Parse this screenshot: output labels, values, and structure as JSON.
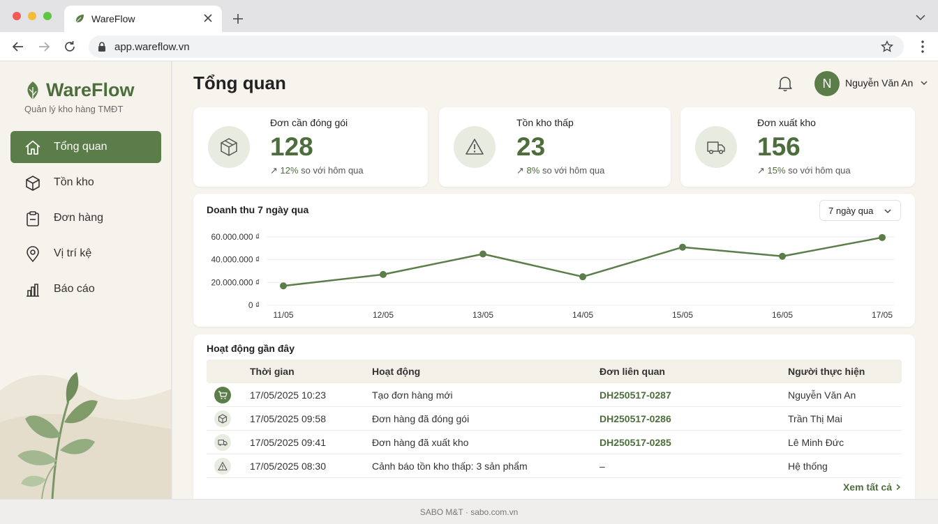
{
  "browser": {
    "tab_title": "WareFlow",
    "url": "app.wareflow.vn"
  },
  "sidebar": {
    "brand": "WareFlow",
    "tagline": "Quản lý kho hàng TMĐT",
    "items": [
      {
        "label": "Tổng quan",
        "icon": "home-icon",
        "active": true
      },
      {
        "label": "Tồn kho",
        "icon": "box-icon",
        "active": false
      },
      {
        "label": "Đơn hàng",
        "icon": "clipboard-icon",
        "active": false
      },
      {
        "label": "Vị trí kệ",
        "icon": "map-pin-icon",
        "active": false
      },
      {
        "label": "Báo cáo",
        "icon": "bar-chart-icon",
        "active": false
      }
    ]
  },
  "header": {
    "title": "Tổng quan",
    "user": {
      "initial": "N",
      "name": "Nguyễn Văn An"
    }
  },
  "stats": [
    {
      "title": "Đơn cần đóng gói",
      "value": "128",
      "delta_pct": "12%",
      "delta_text": "so với hôm qua",
      "icon": "package-icon"
    },
    {
      "title": "Tồn kho thấp",
      "value": "23",
      "delta_pct": "8%",
      "delta_text": "so với hôm qua",
      "icon": "warning-icon"
    },
    {
      "title": "Đơn xuất kho",
      "value": "156",
      "delta_pct": "15%",
      "delta_text": "so với hôm qua",
      "icon": "truck-icon"
    }
  ],
  "revenue_chart": {
    "title": "Doanh thu 7 ngày qua",
    "range_label": "7 ngày qua"
  },
  "chart_data": {
    "type": "line",
    "title": "Doanh thu 7 ngày qua",
    "categories": [
      "11/05",
      "12/05",
      "13/05",
      "14/05",
      "15/05",
      "16/05",
      "17/05"
    ],
    "series": [
      {
        "values": [
          17000000,
          27000000,
          45000000,
          25000000,
          51000000,
          43000000,
          59500000
        ]
      }
    ],
    "y_ticks": [
      0,
      20000000,
      40000000,
      60000000
    ],
    "y_tick_labels": [
      "0 ₫",
      "20.000.000 ₫",
      "40.000.000 ₫",
      "60.000.000 ₫"
    ],
    "ylim": [
      0,
      60000000
    ],
    "grid": true,
    "color": "#5b7d49"
  },
  "activity": {
    "title": "Hoạt động gần đây",
    "columns": [
      "Thời gian",
      "Hoạt động",
      "Đơn liên quan",
      "Người thực hiện"
    ],
    "rows": [
      {
        "icon": "cart-icon",
        "time": "17/05/2025 10:23",
        "action": "Tạo đơn hàng mới",
        "order": "DH250517-0287",
        "user": "Nguyễn Văn An"
      },
      {
        "icon": "package-icon",
        "time": "17/05/2025 09:58",
        "action": "Đơn hàng đã đóng gói",
        "order": "DH250517-0286",
        "user": "Trần Thị Mai"
      },
      {
        "icon": "truck-icon",
        "time": "17/05/2025 09:41",
        "action": "Đơn hàng đã xuất kho",
        "order": "DH250517-0285",
        "user": "Lê Minh Đức"
      },
      {
        "icon": "warning-icon",
        "time": "17/05/2025 08:30",
        "action": "Cảnh báo tồn kho thấp: 3 sản phẩm",
        "order": "–",
        "user": "Hệ thống"
      }
    ],
    "see_all": "Xem tất cả"
  },
  "footer": {
    "text": "SABO M&T · sabo.com.vn"
  }
}
